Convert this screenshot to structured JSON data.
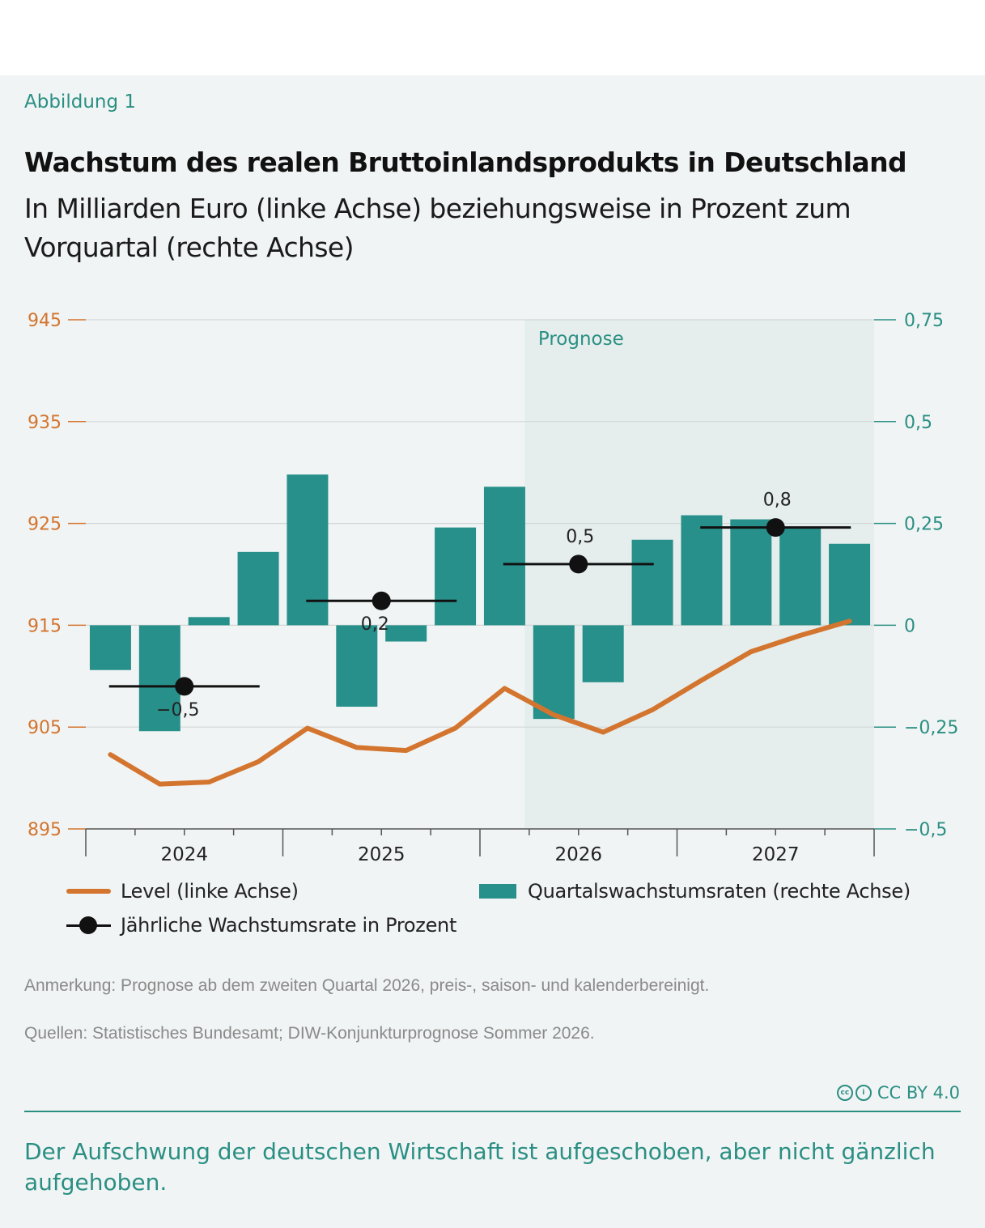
{
  "figure_label": "Abbildung 1",
  "license": "CC BY 4.0",
  "footer": {
    "note": "Anmerkung: Prognose ab dem zweiten Quartal 2026, preis-, saison- und kalenderbereinigt.",
    "sources": "Quellen: Statistisches Bundesamt; DIW-Konjunkturprognose Sommer 2026.",
    "caption": "Der Aufschwung der deutschen Wirtschaft ist aufgeschoben, aber nicht gänzlich aufgehoben."
  },
  "colors": {
    "level_line": "#d3752f",
    "bars": "#27908a",
    "left_axis": "#d3752f",
    "right_axis": "#2a8f83",
    "forecast_shade": "#e5eeed",
    "annual": "#111111"
  },
  "chart_data": {
    "type": "bar",
    "title": "Wachstum des realen Bruttoinlandsprodukts in Deutschland",
    "subtitle": "In Milliarden Euro (linke Achse) beziehungsweise in Prozent zum Vorquartal (rechte Achse)",
    "x_tick_labels": [
      "2024",
      "2025",
      "2026",
      "2027"
    ],
    "quarters": [
      "2024 Q1",
      "2024 Q2",
      "2024 Q3",
      "2024 Q4",
      "2025 Q1",
      "2025 Q2",
      "2025 Q3",
      "2025 Q4",
      "2026 Q1",
      "2026 Q2",
      "2026 Q3",
      "2026 Q4",
      "2027 Q1",
      "2027 Q2",
      "2027 Q3",
      "2027 Q4"
    ],
    "left_axis": {
      "ticks": [
        "945",
        "935",
        "925",
        "915",
        "905",
        "895"
      ],
      "range": [
        895,
        945
      ]
    },
    "right_axis": {
      "ticks": [
        "0,75",
        "0,5",
        "0,25",
        "0",
        "−0,25",
        "−0,5"
      ],
      "range": [
        -0.5,
        0.75
      ]
    },
    "series": [
      {
        "name": "Level (linke Achse)",
        "type": "line",
        "axis": "left",
        "values": [
          902.3,
          899.4,
          899.6,
          901.6,
          904.9,
          903.0,
          902.7,
          904.9,
          908.8,
          906.2,
          904.5,
          906.7,
          909.6,
          912.4,
          914.0,
          915.4
        ]
      },
      {
        "name": "Quartalswachstumsraten (rechte Achse)",
        "type": "bar",
        "axis": "right",
        "values": [
          -0.11,
          -0.26,
          0.02,
          0.18,
          0.37,
          -0.2,
          -0.04,
          0.24,
          0.34,
          -0.23,
          -0.14,
          0.21,
          0.27,
          0.26,
          0.24,
          0.2
        ]
      },
      {
        "name": "Jährliche Wachstumsrate in Prozent",
        "type": "dot",
        "labels": [
          "−0,5",
          "0,2",
          "0,5",
          "0,8"
        ],
        "values": [
          -0.5,
          0.2,
          0.5,
          0.8
        ]
      }
    ],
    "forecast_label": "Prognose",
    "forecast_start": "2026 Q2",
    "grid": true,
    "legend_position": "bottom"
  }
}
